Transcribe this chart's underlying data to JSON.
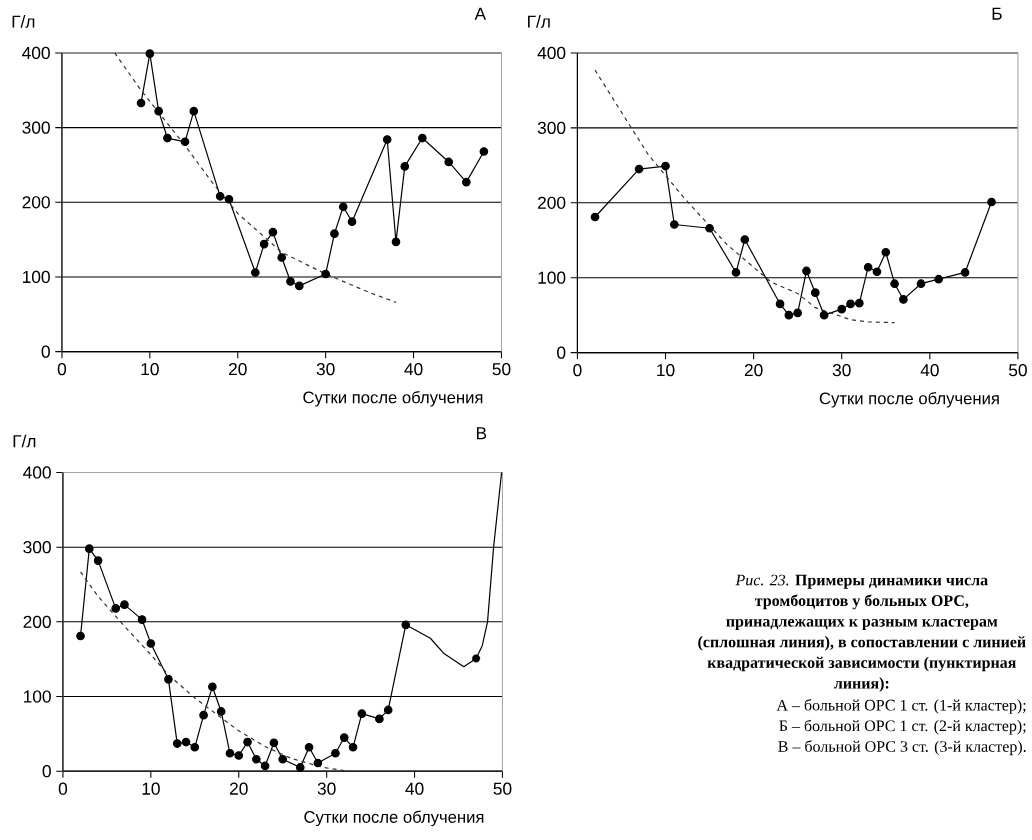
{
  "chart_data": [
    {
      "type": "line",
      "title": "А",
      "xlabel": "Сутки после облучения",
      "ylabel": "Г/л",
      "xlim": [
        0,
        50
      ],
      "ylim": [
        0,
        400
      ],
      "xticks": [
        0,
        10,
        20,
        30,
        40,
        50
      ],
      "yticks": [
        0,
        100,
        200,
        300,
        400
      ],
      "grid": "y",
      "series": [
        {
          "color": "#000000",
          "marker": "circle",
          "line_style": "solid",
          "x": [
            9,
            10,
            11,
            12,
            14,
            15,
            18,
            19,
            22,
            23,
            24,
            25,
            26,
            27,
            30,
            31,
            32,
            33,
            37,
            38,
            39,
            41,
            44,
            46,
            48
          ],
          "values": [
            333,
            399,
            322,
            286,
            281,
            322,
            208,
            204,
            106,
            144,
            160,
            126,
            94,
            88,
            104,
            158,
            194,
            174,
            284,
            147,
            248,
            286,
            254,
            227,
            268
          ]
        },
        {
          "color": "#333333",
          "marker": "none",
          "line_style": "dashed",
          "x": [
            6,
            9,
            14,
            17,
            20,
            25,
            30,
            35,
            38
          ],
          "values": [
            400,
            350,
            276,
            228,
            185,
            133,
            104,
            79,
            66
          ]
        }
      ]
    },
    {
      "type": "line",
      "title": "Б",
      "xlabel": "Сутки после облучения",
      "ylabel": "Г/л",
      "xlim": [
        0,
        50
      ],
      "ylim": [
        0,
        400
      ],
      "xticks": [
        0,
        10,
        20,
        30,
        40,
        50
      ],
      "yticks": [
        0,
        100,
        200,
        300,
        400
      ],
      "grid": "y",
      "series": [
        {
          "color": "#000000",
          "marker": "circle",
          "line_style": "solid",
          "x": [
            2,
            7,
            10,
            11,
            15,
            18,
            19,
            23,
            24,
            25,
            26,
            27,
            28,
            30,
            31,
            32,
            33,
            34,
            35,
            36,
            37,
            39,
            41,
            44,
            47
          ],
          "values": [
            181,
            245,
            249,
            171,
            166,
            107,
            151,
            65,
            50,
            53,
            109,
            80,
            50,
            58,
            65,
            66,
            114,
            108,
            134,
            92,
            71,
            92,
            98,
            107,
            201
          ]
        },
        {
          "color": "#333333",
          "marker": "none",
          "line_style": "dashed",
          "x": [
            2,
            8,
            12,
            14,
            17,
            19,
            22,
            25,
            27,
            31,
            33,
            36
          ],
          "values": [
            377,
            265,
            208,
            182,
            144,
            124,
            94,
            79,
            60,
            44,
            41,
            40
          ]
        }
      ]
    },
    {
      "type": "line",
      "title": "В",
      "xlabel": "Сутки после облучения",
      "ylabel": "Г/л",
      "xlim": [
        0,
        50
      ],
      "ylim": [
        0,
        400
      ],
      "xticks": [
        0,
        10,
        20,
        30,
        40,
        50
      ],
      "yticks": [
        0,
        100,
        200,
        300,
        400
      ],
      "grid": "y",
      "series": [
        {
          "color": "#000000",
          "marker": "circle",
          "line_style": "solid",
          "x": [
            2,
            3,
            4,
            6,
            7,
            9,
            10,
            12,
            13,
            14,
            15,
            16,
            17,
            18,
            19,
            20,
            21,
            22,
            23,
            24,
            25,
            27,
            28,
            29,
            31,
            32,
            33,
            34,
            36,
            37,
            39
          ],
          "values": [
            181,
            298,
            282,
            218,
            223,
            203,
            171,
            123,
            37,
            39,
            32,
            75,
            113,
            80,
            24,
            21,
            39,
            16,
            7,
            38,
            16,
            5,
            32,
            11,
            24,
            45,
            32,
            77,
            70,
            82,
            196
          ]
        },
        {
          "color": "#000000",
          "marker": "none",
          "line_style": "solid",
          "x": [
            39,
            41.8,
            43.3,
            45.6,
            47,
            47.7,
            48.3,
            49,
            49.9
          ],
          "values": [
            196,
            178,
            158,
            140,
            151,
            168,
            200,
            301,
            400
          ]
        },
        {
          "type": "scatter",
          "color": "#000000",
          "marker": "circle",
          "x": [
            47
          ],
          "values": [
            151
          ]
        },
        {
          "color": "#333333",
          "marker": "none",
          "line_style": "dashed",
          "x": [
            2,
            4,
            7,
            10,
            12,
            15,
            17.5,
            20,
            23,
            26,
            29.6,
            32.5
          ],
          "values": [
            267,
            234,
            194,
            156,
            129,
            98,
            76,
            54,
            33,
            17,
            5,
            0
          ]
        }
      ]
    },
    {
      "type": "other",
      "title": "*Рис. 23.* **Примеры динамики числа тромбоцитов у больных ОРС, принадлежащих к разным кластерам (сплошная линия), в сопоставлении с линией квадратической зависимости (пунктирная линия):**",
      "annotations": [
        "А – больной ОРС 1 ст. (1-й кластер);",
        "Б – больной ОРС 1 ст. (2-й кластер);",
        "В – больной ОРС 3 ст. (3-й кластер)."
      ]
    }
  ]
}
